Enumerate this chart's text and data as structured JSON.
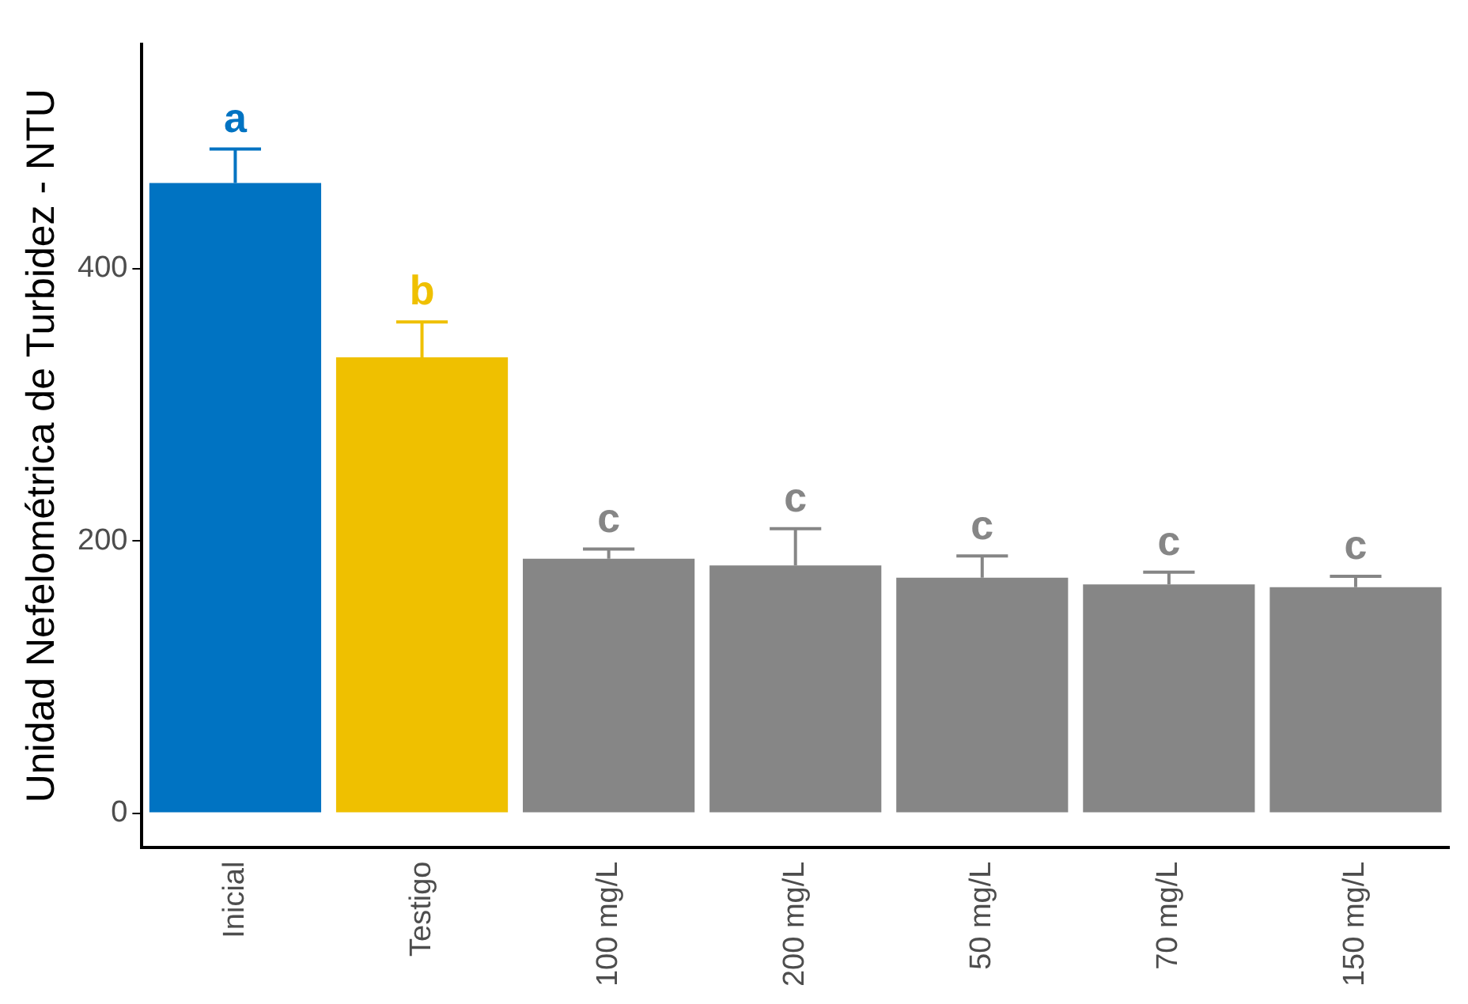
{
  "chart_data": {
    "type": "bar",
    "ylabel": "Unidad Nefelométrica de Turbidez - NTU",
    "categories": [
      "Inicial",
      "Testigo",
      "100 mg/L",
      "200 mg/L",
      "50 mg/L",
      "70 mg/L",
      "150 mg/L"
    ],
    "values": [
      463,
      335,
      187,
      182,
      173,
      168,
      166
    ],
    "colors": [
      "#0073c2",
      "#efc000",
      "#868686",
      "#868686",
      "#868686",
      "#868686",
      "#868686"
    ],
    "errors": [
      [
        463,
        488
      ],
      [
        335,
        361
      ],
      [
        187,
        194
      ],
      [
        182,
        209
      ],
      [
        173,
        189
      ],
      [
        168,
        177
      ],
      [
        166,
        174
      ]
    ],
    "ylim": [
      -25,
      565
    ],
    "yticks": [
      0,
      200,
      400
    ],
    "grid": false,
    "legend": false,
    "annotations": [
      "a",
      "b",
      "c",
      "c",
      "c",
      "c",
      "c"
    ]
  }
}
